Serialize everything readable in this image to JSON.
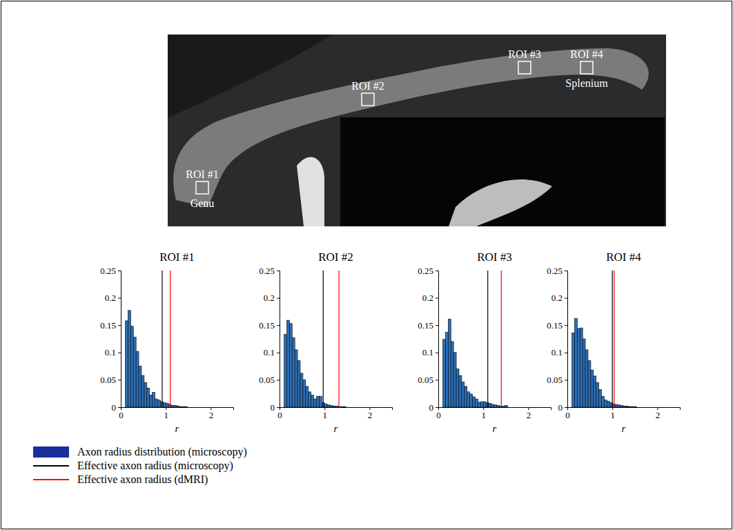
{
  "figure": {
    "image": {
      "regions": [
        {
          "label": "ROI #1",
          "region": "Genu"
        },
        {
          "label": "ROI #2"
        },
        {
          "label": "ROI #3"
        },
        {
          "label": "ROI #4",
          "region": "Splenium"
        }
      ]
    },
    "legend_entries": [
      {
        "label": "Axon radius distribution (microscopy)",
        "color": "#1a2f9c",
        "marker": "bar"
      },
      {
        "label": "Effective axon radius (microscopy)",
        "color": "#000000",
        "marker": "line"
      },
      {
        "label": "Effective axon radius (dMRI)",
        "color": "#ff0000",
        "marker": "line"
      }
    ]
  },
  "chart_data": [
    {
      "type": "histogram",
      "title": "ROI #1",
      "x_label": "r",
      "bins": [
        0.1,
        0.16,
        0.22,
        0.28,
        0.34,
        0.4,
        0.46,
        0.52,
        0.58,
        0.64,
        0.7,
        0.76,
        0.82,
        0.88,
        0.94,
        1.0,
        1.06,
        1.12,
        1.18,
        1.24,
        1.3,
        1.36,
        1.42,
        1.48,
        1.54
      ],
      "counts": [
        0.158,
        0.177,
        0.148,
        0.128,
        0.102,
        0.075,
        0.058,
        0.045,
        0.035,
        0.022,
        0.027,
        0.015,
        0.013,
        0.01,
        0.008,
        0.007,
        0.005,
        0.003,
        0.003,
        0.002,
        0.001,
        0.001,
        0.001,
        0.0
      ],
      "color": "#2d6fb5",
      "xlim": [
        0,
        2.5
      ],
      "xticks": [
        0,
        1,
        2
      ],
      "ylim": [
        0,
        0.25
      ],
      "yticks": [
        0,
        0.05,
        0.1,
        0.15,
        0.2,
        0.25
      ],
      "lines": [
        {
          "value": 0.92,
          "color": "#000000"
        },
        {
          "value": 1.1,
          "color": "#ff0000"
        }
      ]
    },
    {
      "type": "histogram",
      "title": "ROI #2",
      "x_label": "r",
      "bins": [
        0.1,
        0.16,
        0.22,
        0.28,
        0.34,
        0.4,
        0.46,
        0.52,
        0.58,
        0.64,
        0.7,
        0.76,
        0.82,
        0.88,
        0.94,
        1.0,
        1.06,
        1.12,
        1.18,
        1.24,
        1.3,
        1.36,
        1.42,
        1.48,
        1.54
      ],
      "counts": [
        0.133,
        0.159,
        0.153,
        0.127,
        0.105,
        0.085,
        0.062,
        0.05,
        0.038,
        0.028,
        0.022,
        0.015,
        0.02,
        0.02,
        0.008,
        0.006,
        0.004,
        0.003,
        0.002,
        0.002,
        0.001,
        0.001,
        0.001,
        0.0
      ],
      "color": "#2d6fb5",
      "xlim": [
        0,
        2.5
      ],
      "xticks": [
        0,
        1,
        2
      ],
      "ylim": [
        0,
        0.25
      ],
      "yticks": [
        0,
        0.05,
        0.1,
        0.15,
        0.2,
        0.25
      ],
      "lines": [
        {
          "value": 0.97,
          "color": "#000000"
        },
        {
          "value": 1.32,
          "color": "#ff0000"
        }
      ]
    },
    {
      "type": "histogram",
      "title": "ROI #3",
      "x_label": "r",
      "bins": [
        0.1,
        0.16,
        0.22,
        0.28,
        0.34,
        0.4,
        0.46,
        0.52,
        0.58,
        0.64,
        0.7,
        0.76,
        0.82,
        0.88,
        0.94,
        1.0,
        1.06,
        1.12,
        1.18,
        1.24,
        1.3,
        1.36,
        1.42,
        1.48,
        1.54
      ],
      "counts": [
        0.124,
        0.137,
        0.161,
        0.12,
        0.1,
        0.07,
        0.058,
        0.046,
        0.038,
        0.028,
        0.024,
        0.019,
        0.015,
        0.009,
        0.01,
        0.01,
        0.008,
        0.007,
        0.005,
        0.004,
        0.003,
        0.002,
        0.002,
        0.003
      ],
      "color": "#2d6fb5",
      "xlim": [
        0,
        2.5
      ],
      "xticks": [
        0,
        1,
        2
      ],
      "ylim": [
        0,
        0.25
      ],
      "yticks": [
        0,
        0.05,
        0.1,
        0.15,
        0.2,
        0.25
      ],
      "lines": [
        {
          "value": 1.1,
          "color": "#000000"
        },
        {
          "value": 1.4,
          "color": "#ff0000"
        }
      ]
    },
    {
      "type": "histogram",
      "title": "ROI #4",
      "x_label": "r",
      "bins": [
        0.1,
        0.16,
        0.22,
        0.28,
        0.34,
        0.4,
        0.46,
        0.52,
        0.58,
        0.64,
        0.7,
        0.76,
        0.82,
        0.88,
        0.94,
        1.0,
        1.06,
        1.12,
        1.18,
        1.24,
        1.3,
        1.36,
        1.42,
        1.48,
        1.54
      ],
      "counts": [
        0.136,
        0.162,
        0.144,
        0.145,
        0.125,
        0.105,
        0.085,
        0.068,
        0.057,
        0.045,
        0.032,
        0.02,
        0.013,
        0.011,
        0.008,
        0.006,
        0.005,
        0.004,
        0.003,
        0.002,
        0.002,
        0.001,
        0.001,
        0.001
      ],
      "color": "#2d6fb5",
      "xlim": [
        0,
        2.5
      ],
      "xticks": [
        0,
        1,
        2
      ],
      "ylim": [
        0,
        0.25
      ],
      "yticks": [
        0,
        0.05,
        0.1,
        0.15,
        0.2,
        0.25
      ],
      "lines": [
        {
          "value": 1.0,
          "color": "#000000"
        },
        {
          "value": 1.04,
          "color": "#ff0000"
        }
      ]
    }
  ]
}
